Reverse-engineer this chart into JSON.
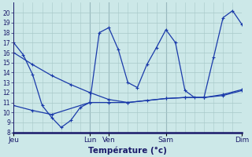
{
  "title": "Température (°c)",
  "bg_color": "#cce8e8",
  "grid_color": "#a8c8c8",
  "line_color": "#1a3aaa",
  "ylim": [
    8,
    21
  ],
  "yticks": [
    8,
    9,
    10,
    11,
    12,
    13,
    14,
    15,
    16,
    17,
    18,
    19,
    20
  ],
  "xlim": [
    0,
    24
  ],
  "day_ticks_x": [
    0,
    8,
    10,
    16,
    24
  ],
  "day_labels": [
    "Jeu",
    "Lun",
    "Ven",
    "Sam",
    "Dim"
  ],
  "series1_x": [
    0,
    1,
    2,
    3,
    4,
    5,
    6,
    7,
    8,
    9,
    10,
    11,
    12,
    13,
    14,
    15,
    16,
    17,
    18,
    19,
    20,
    21,
    22,
    23,
    24
  ],
  "series1_y": [
    17.0,
    15.8,
    13.8,
    10.7,
    9.5,
    8.5,
    9.2,
    10.5,
    11.0,
    18.0,
    18.5,
    16.3,
    13.0,
    12.5,
    14.8,
    16.5,
    18.3,
    17.0,
    12.2,
    11.5,
    11.5,
    15.5,
    19.5,
    20.2,
    18.8
  ],
  "series2_x": [
    0,
    2,
    4,
    6,
    8,
    10,
    12,
    14,
    16,
    18,
    20,
    22,
    24
  ],
  "series2_y": [
    16.0,
    14.8,
    13.7,
    12.8,
    12.0,
    11.3,
    11.0,
    11.2,
    11.4,
    11.5,
    11.5,
    11.7,
    12.2
  ],
  "series3_x": [
    0,
    2,
    4,
    8,
    10,
    12,
    16,
    18,
    20,
    22,
    24
  ],
  "series3_y": [
    10.7,
    10.2,
    9.8,
    11.0,
    11.0,
    11.0,
    11.4,
    11.5,
    11.5,
    11.8,
    12.3
  ]
}
